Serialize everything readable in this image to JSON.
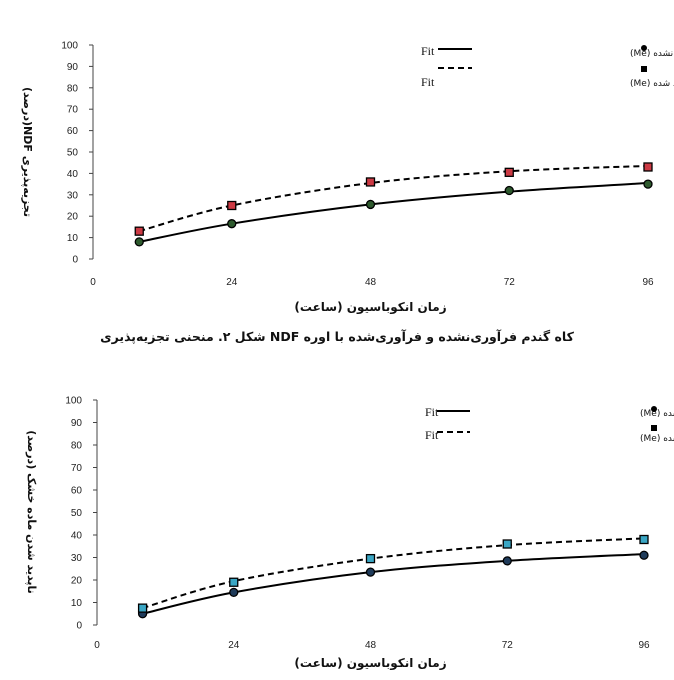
{
  "caption": "شکل ۲. منحنی تجزیه‌پذیری NDF کاه گندم فرآوری‌نشده و فرآوری‌شده با اوره",
  "colors": {
    "untreated_fill": "#1f2a38",
    "treated_fill": "#000000"
  },
  "chart_data": [
    {
      "type": "line",
      "ylabel": "تجزیه‌پذیری NDF(درصد)",
      "xlabel": "زمان انکوباسیون (ساعت)",
      "ylim": [
        0,
        100
      ],
      "y_ticks": [
        "0",
        "10",
        "20",
        "30",
        "40",
        "50",
        "60",
        "70",
        "80",
        "90",
        "100"
      ],
      "xlim": [
        0,
        96
      ],
      "x_ticks": [
        "0",
        "24",
        "48",
        "72",
        "96"
      ],
      "grid": false,
      "legend_position": "top-right",
      "legend": {
        "fit_labels": [
          "Fit",
          "Fit"
        ],
        "series_labels": [
          "کاه فرایند نشده (Me)",
          "کاه فرایند شده (Me)"
        ]
      },
      "series": [
        {
          "name": "کاه فرایند نشده (Me)",
          "marker": "circle",
          "marker_fill": "#2e5a2e",
          "line": "solid",
          "x": [
            8,
            24,
            48,
            72,
            96
          ],
          "values": [
            8,
            16.5,
            25.5,
            32,
            35
          ],
          "fit": [
            8,
            16.5,
            25.5,
            31.5,
            35.5
          ]
        },
        {
          "name": "کاه فرایند شده (Me)",
          "marker": "square",
          "marker_fill": "#cc3a44",
          "line": "dashed",
          "x": [
            8,
            24,
            48,
            72,
            96
          ],
          "values": [
            13,
            25,
            36,
            40.5,
            43
          ],
          "fit": [
            13,
            25,
            35.5,
            41,
            43.5
          ]
        }
      ]
    },
    {
      "type": "line",
      "ylabel": "ناپدید شدن ماده خشک (درصد)",
      "xlabel": "زمان انکوباسیون (ساعت)",
      "ylim": [
        0,
        100
      ],
      "y_ticks": [
        "0",
        "10",
        "20",
        "30",
        "40",
        "50",
        "60",
        "70",
        "80",
        "90",
        "100"
      ],
      "xlim": [
        0,
        96
      ],
      "x_ticks": [
        "0",
        "24",
        "48",
        "72",
        "96"
      ],
      "grid": false,
      "legend_position": "top-right",
      "legend": {
        "fit_labels": [
          "Fit",
          "Fit"
        ],
        "series_labels": [
          "باگاس فرایند نشده (Me)",
          "باگاس فرایند شده (Me)"
        ]
      },
      "series": [
        {
          "name": "باگاس فرایند نشده (Me)",
          "marker": "circle",
          "marker_fill": "#1f3b5a",
          "line": "solid",
          "x": [
            8,
            24,
            48,
            72,
            96
          ],
          "values": [
            5,
            14.5,
            23.5,
            28.5,
            31
          ],
          "fit": [
            5,
            14.5,
            23.5,
            28.5,
            31.5
          ]
        },
        {
          "name": "باگاس فرایند شده (Me)",
          "marker": "square",
          "marker_fill": "#3aa6c4",
          "line": "dashed",
          "x": [
            8,
            24,
            48,
            72,
            96
          ],
          "values": [
            7.5,
            19,
            29.5,
            36,
            38
          ],
          "fit": [
            7.5,
            19.5,
            29.5,
            35.5,
            38.5
          ]
        }
      ]
    }
  ]
}
